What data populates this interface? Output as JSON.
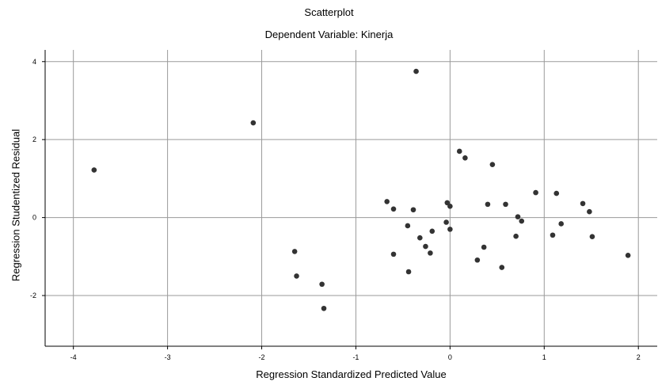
{
  "chart_data": {
    "type": "scatter",
    "title": "Scatterplot",
    "subtitle": "Dependent Variable: Kinerja",
    "xlabel": "Regression Standardized Predicted Value",
    "ylabel": "Regression Studentized Residual",
    "xlim": [
      -4.3,
      2.2
    ],
    "ylim": [
      -3.3,
      4.3
    ],
    "xticks": [
      -4,
      -3,
      -2,
      -1,
      0,
      1,
      2
    ],
    "yticks": [
      -2,
      0,
      2,
      4
    ],
    "xtick_labels": [
      "-4",
      "-3",
      "-2",
      "-1",
      "0",
      "1",
      "2"
    ],
    "ytick_labels": [
      "-2",
      "0",
      "2",
      "4"
    ],
    "grid": true,
    "points": [
      {
        "x": -3.78,
        "y": 1.22
      },
      {
        "x": -2.09,
        "y": 2.43
      },
      {
        "x": -0.36,
        "y": 3.75
      },
      {
        "x": -1.65,
        "y": -0.87
      },
      {
        "x": -1.63,
        "y": -1.5
      },
      {
        "x": -1.36,
        "y": -1.71
      },
      {
        "x": -1.34,
        "y": -2.33
      },
      {
        "x": -0.67,
        "y": 0.41
      },
      {
        "x": -0.6,
        "y": 0.22
      },
      {
        "x": -0.6,
        "y": -0.94
      },
      {
        "x": -0.45,
        "y": -0.21
      },
      {
        "x": -0.44,
        "y": -1.39
      },
      {
        "x": -0.39,
        "y": 0.2
      },
      {
        "x": -0.32,
        "y": -0.52
      },
      {
        "x": -0.26,
        "y": -0.74
      },
      {
        "x": -0.21,
        "y": -0.91
      },
      {
        "x": -0.19,
        "y": -0.35
      },
      {
        "x": -0.04,
        "y": -0.12
      },
      {
        "x": -0.03,
        "y": 0.38
      },
      {
        "x": 0.0,
        "y": 0.29
      },
      {
        "x": 0.0,
        "y": -0.3
      },
      {
        "x": 0.1,
        "y": 1.7
      },
      {
        "x": 0.16,
        "y": 1.53
      },
      {
        "x": 0.29,
        "y": -1.09
      },
      {
        "x": 0.36,
        "y": -0.76
      },
      {
        "x": 0.4,
        "y": 0.34
      },
      {
        "x": 0.45,
        "y": 1.36
      },
      {
        "x": 0.55,
        "y": -1.28
      },
      {
        "x": 0.59,
        "y": 0.34
      },
      {
        "x": 0.7,
        "y": -0.48
      },
      {
        "x": 0.72,
        "y": 0.02
      },
      {
        "x": 0.76,
        "y": -0.09
      },
      {
        "x": 0.91,
        "y": 0.64
      },
      {
        "x": 1.09,
        "y": -0.45
      },
      {
        "x": 1.13,
        "y": 0.62
      },
      {
        "x": 1.18,
        "y": -0.16
      },
      {
        "x": 1.41,
        "y": 0.36
      },
      {
        "x": 1.48,
        "y": 0.15
      },
      {
        "x": 1.51,
        "y": -0.49
      },
      {
        "x": 1.89,
        "y": -0.97
      }
    ]
  }
}
